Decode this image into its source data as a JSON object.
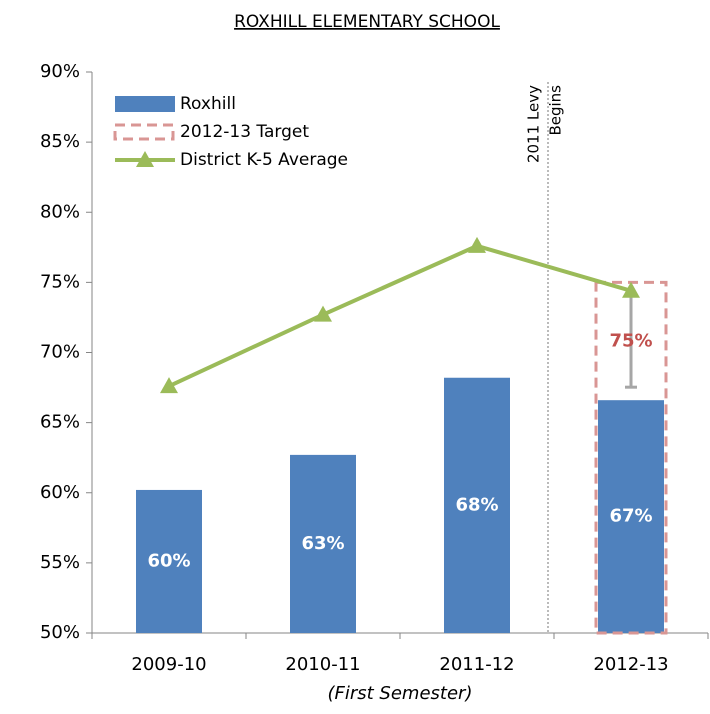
{
  "chart_data": {
    "type": "bar",
    "title": "ROXHILL ELEMENTARY SCHOOL",
    "x_label": "(First Semester)",
    "categories": [
      "2009-10",
      "2010-11",
      "2011-12",
      "2012-13"
    ],
    "series": [
      {
        "name": "Roxhill",
        "type": "bar",
        "color": "#4f81bd",
        "values": [
          60.2,
          62.7,
          68.2,
          66.6
        ],
        "value_labels": [
          "60%",
          "63%",
          "68%",
          "67%"
        ]
      },
      {
        "name": "2012-13 Target",
        "type": "target",
        "color": "#d99694",
        "values": [
          null,
          null,
          null,
          75
        ],
        "value_labels": [
          null,
          null,
          null,
          "75%"
        ]
      },
      {
        "name": "District K-5 Average",
        "type": "line",
        "color": "#9bbb59",
        "values": [
          67.6,
          72.7,
          77.6,
          74.4
        ]
      }
    ],
    "annotation": [
      "2011 Levy",
      "Begins"
    ],
    "ylim": [
      50,
      90
    ],
    "yticks": [
      {
        "value": 50,
        "label": "50%"
      },
      {
        "value": 55,
        "label": "55%"
      },
      {
        "value": 60,
        "label": "60%"
      },
      {
        "value": 65,
        "label": "65%"
      },
      {
        "value": 70,
        "label": "70%"
      },
      {
        "value": 75,
        "label": "75%"
      },
      {
        "value": 80,
        "label": "80%"
      },
      {
        "value": 85,
        "label": "85%"
      },
      {
        "value": 90,
        "label": "90%"
      }
    ],
    "grid": false,
    "legend": "upper left"
  }
}
